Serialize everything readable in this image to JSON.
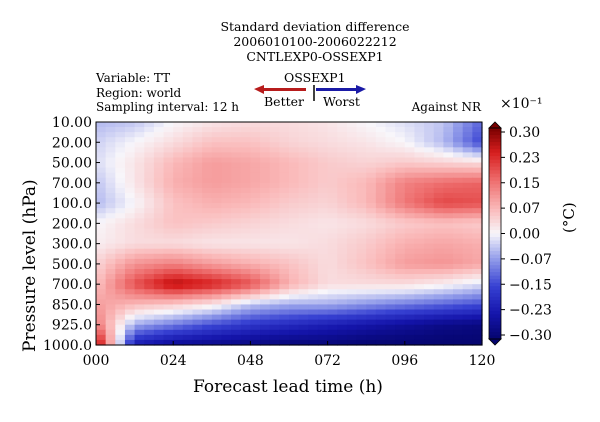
{
  "header": {
    "line1": "Standard deviation difference",
    "line2": "2006010100-2006022212",
    "line3": "CNTLEXP0-OSSEXP1"
  },
  "legend": {
    "title": "OSSEXP1",
    "left_label": "Better",
    "right_label": "Worst",
    "better_color": "#d7191c",
    "worst_color": "#1a1aa6"
  },
  "meta": {
    "variable": "Variable: TT",
    "region": "Region: world",
    "sampling": "Sampling interval: 12 h"
  },
  "against": "Against NR",
  "scale_factor": "×10⁻¹",
  "colorbar_unit": "(°C)",
  "chart_data": {
    "type": "heatmap",
    "xlabel": "Forecast lead time (h)",
    "ylabel": "Pressure level (hPa)",
    "x_ticks": [
      "000",
      "024",
      "048",
      "072",
      "096",
      "120"
    ],
    "x": [
      0,
      12,
      24,
      36,
      48,
      60,
      72,
      84,
      96,
      108,
      120
    ],
    "y_levels": [
      "10.00",
      "20.00",
      "50.00",
      "70.00",
      "100.0",
      "200.0",
      "300.0",
      "500.0",
      "700.0",
      "850.0",
      "925.0",
      "1000.0"
    ],
    "colorbar_ticks": [
      "0.30",
      "0.23",
      "0.15",
      "0.07",
      "0.00",
      "−0.07",
      "−0.15",
      "−0.23",
      "−0.30"
    ],
    "vmin": -0.3,
    "vmax": 0.3,
    "z": [
      [
        -0.05,
        -0.04,
        0.0,
        0.02,
        0.03,
        0.03,
        0.02,
        0.0,
        -0.02,
        -0.04,
        -0.12
      ],
      [
        -0.03,
        0.0,
        0.03,
        0.06,
        0.06,
        0.04,
        0.03,
        0.02,
        0.0,
        -0.05,
        -0.15
      ],
      [
        -0.02,
        0.02,
        0.07,
        0.1,
        0.09,
        0.07,
        0.05,
        0.04,
        0.05,
        0.04,
        0.03
      ],
      [
        -0.04,
        0.02,
        0.08,
        0.1,
        0.09,
        0.07,
        0.05,
        0.07,
        0.13,
        0.15,
        0.16
      ],
      [
        -0.05,
        0.0,
        0.06,
        0.08,
        0.07,
        0.05,
        0.04,
        0.07,
        0.14,
        0.19,
        0.18
      ],
      [
        0.0,
        0.03,
        0.06,
        0.05,
        0.04,
        0.03,
        0.02,
        0.03,
        0.05,
        0.06,
        0.05
      ],
      [
        0.01,
        0.03,
        0.03,
        0.02,
        0.02,
        0.02,
        0.03,
        0.05,
        0.08,
        0.09,
        0.08
      ],
      [
        0.04,
        0.11,
        0.13,
        0.1,
        0.08,
        0.06,
        0.03,
        0.06,
        0.1,
        0.11,
        0.09
      ],
      [
        0.06,
        0.18,
        0.26,
        0.23,
        0.18,
        0.08,
        0.03,
        0.03,
        0.03,
        0.01,
        -0.02
      ],
      [
        0.1,
        0.07,
        0.05,
        0.02,
        -0.04,
        -0.06,
        -0.06,
        -0.08,
        -0.1,
        -0.12,
        -0.14
      ],
      [
        0.14,
        -0.06,
        -0.1,
        -0.14,
        -0.17,
        -0.19,
        -0.21,
        -0.23,
        -0.25,
        -0.27,
        -0.28
      ],
      [
        0.28,
        -0.22,
        -0.26,
        -0.27,
        -0.28,
        -0.29,
        -0.29,
        -0.3,
        -0.3,
        -0.3,
        -0.3
      ]
    ]
  }
}
